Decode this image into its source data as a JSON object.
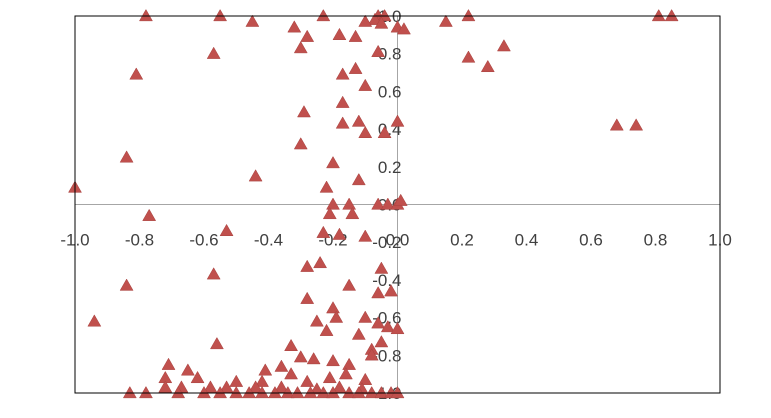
{
  "chart_data": {
    "type": "scatter",
    "title": "",
    "xlabel": "",
    "ylabel": "",
    "xlim": [
      -1.0,
      1.0
    ],
    "ylim": [
      -1.0,
      1.0
    ],
    "x_ticks": [
      "-1.0",
      "-0.8",
      "-0.6",
      "-0.4",
      "-0.2",
      "0.0",
      "0.2",
      "0.4",
      "0.6",
      "0.8",
      "1.0"
    ],
    "y_ticks": [
      "-1.0",
      "-0.8",
      "-0.6",
      "-0.4",
      "-0.2",
      "0.0",
      "0.2",
      "0.4",
      "0.6",
      "0.8",
      "1.0"
    ],
    "x_tick_values": [
      -1.0,
      -0.8,
      -0.6,
      -0.4,
      -0.2,
      0.0,
      0.2,
      0.4,
      0.6,
      0.8,
      1.0
    ],
    "y_tick_values": [
      -1.0,
      -0.8,
      -0.6,
      -0.4,
      -0.2,
      0.0,
      0.2,
      0.4,
      0.6,
      0.8,
      1.0
    ],
    "grid": false,
    "legend": "none",
    "marker": "triangle",
    "marker_color": "#C0504D",
    "axis_color": "#a6a6a6",
    "frame_color": "#000000",
    "series": [
      {
        "points": [
          [
            -0.78,
            1.0
          ],
          [
            -0.55,
            1.0
          ],
          [
            -0.45,
            0.97
          ],
          [
            -0.23,
            1.0
          ],
          [
            -0.06,
            1.0
          ],
          [
            -0.04,
            1.0
          ],
          [
            -0.07,
            0.98
          ],
          [
            -0.1,
            0.97
          ],
          [
            -0.05,
            0.96
          ],
          [
            0.0,
            0.94
          ],
          [
            0.02,
            0.93
          ],
          [
            0.15,
            0.97
          ],
          [
            0.22,
            1.0
          ],
          [
            0.81,
            1.0
          ],
          [
            0.85,
            1.0
          ],
          [
            -0.32,
            0.94
          ],
          [
            -0.28,
            0.89
          ],
          [
            -0.18,
            0.9
          ],
          [
            -0.13,
            0.89
          ],
          [
            -0.3,
            0.83
          ],
          [
            -0.57,
            0.8
          ],
          [
            -0.06,
            0.81
          ],
          [
            0.22,
            0.78
          ],
          [
            0.33,
            0.84
          ],
          [
            0.28,
            0.73
          ],
          [
            -0.81,
            0.69
          ],
          [
            -0.13,
            0.72
          ],
          [
            -0.17,
            0.69
          ],
          [
            -0.1,
            0.63
          ],
          [
            -0.17,
            0.54
          ],
          [
            -0.29,
            0.49
          ],
          [
            -0.17,
            0.43
          ],
          [
            -0.12,
            0.44
          ],
          [
            -0.1,
            0.38
          ],
          [
            -0.04,
            0.38
          ],
          [
            0.0,
            0.44
          ],
          [
            0.68,
            0.42
          ],
          [
            0.74,
            0.42
          ],
          [
            -0.3,
            0.32
          ],
          [
            -0.84,
            0.25
          ],
          [
            -0.2,
            0.22
          ],
          [
            -0.44,
            0.15
          ],
          [
            -0.12,
            0.13
          ],
          [
            -1.0,
            0.09
          ],
          [
            -0.22,
            0.09
          ],
          [
            -0.15,
            0.0
          ],
          [
            -0.2,
            0.0
          ],
          [
            -0.06,
            0.0
          ],
          [
            -0.03,
            0.0
          ],
          [
            0.0,
            0.0
          ],
          [
            0.01,
            0.02
          ],
          [
            -0.21,
            -0.05
          ],
          [
            -0.14,
            -0.05
          ],
          [
            -0.77,
            -0.06
          ],
          [
            -0.53,
            -0.14
          ],
          [
            -0.23,
            -0.15
          ],
          [
            -0.18,
            -0.16
          ],
          [
            -0.1,
            -0.17
          ],
          [
            -0.24,
            -0.31
          ],
          [
            -0.28,
            -0.33
          ],
          [
            -0.05,
            -0.34
          ],
          [
            -0.57,
            -0.37
          ],
          [
            -0.84,
            -0.43
          ],
          [
            -0.15,
            -0.43
          ],
          [
            -0.28,
            -0.5
          ],
          [
            -0.06,
            -0.47
          ],
          [
            -0.02,
            -0.46
          ],
          [
            -0.2,
            -0.55
          ],
          [
            -0.19,
            -0.6
          ],
          [
            -0.25,
            -0.62
          ],
          [
            -0.1,
            -0.6
          ],
          [
            -0.06,
            -0.63
          ],
          [
            -0.03,
            -0.65
          ],
          [
            0.0,
            -0.66
          ],
          [
            -0.94,
            -0.62
          ],
          [
            -0.22,
            -0.67
          ],
          [
            -0.12,
            -0.69
          ],
          [
            -0.05,
            -0.73
          ],
          [
            -0.56,
            -0.74
          ],
          [
            -0.33,
            -0.75
          ],
          [
            -0.08,
            -0.77
          ],
          [
            -0.3,
            -0.81
          ],
          [
            -0.26,
            -0.82
          ],
          [
            -0.2,
            -0.83
          ],
          [
            -0.15,
            -0.85
          ],
          [
            -0.08,
            -0.8
          ],
          [
            -0.71,
            -0.85
          ],
          [
            -0.65,
            -0.88
          ],
          [
            -0.41,
            -0.88
          ],
          [
            -0.36,
            -0.86
          ],
          [
            -0.72,
            -0.92
          ],
          [
            -0.62,
            -0.92
          ],
          [
            -0.5,
            -0.94
          ],
          [
            -0.42,
            -0.94
          ],
          [
            -0.33,
            -0.9
          ],
          [
            -0.28,
            -0.94
          ],
          [
            -0.21,
            -0.92
          ],
          [
            -0.16,
            -0.9
          ],
          [
            -0.1,
            -0.93
          ],
          [
            -0.72,
            -0.97
          ],
          [
            -0.67,
            -0.97
          ],
          [
            -0.58,
            -0.97
          ],
          [
            -0.53,
            -0.97
          ],
          [
            -0.44,
            -0.97
          ],
          [
            -0.36,
            -0.97
          ],
          [
            -0.25,
            -0.98
          ],
          [
            -0.18,
            -0.97
          ],
          [
            -0.11,
            -0.98
          ],
          [
            -0.83,
            -1.0
          ],
          [
            -0.78,
            -1.0
          ],
          [
            -0.68,
            -1.0
          ],
          [
            -0.6,
            -1.0
          ],
          [
            -0.55,
            -1.0
          ],
          [
            -0.5,
            -1.0
          ],
          [
            -0.46,
            -1.0
          ],
          [
            -0.42,
            -1.0
          ],
          [
            -0.38,
            -1.0
          ],
          [
            -0.34,
            -1.0
          ],
          [
            -0.31,
            -1.0
          ],
          [
            -0.27,
            -1.0
          ],
          [
            -0.23,
            -1.0
          ],
          [
            -0.2,
            -1.0
          ],
          [
            -0.15,
            -1.0
          ],
          [
            -0.12,
            -1.0
          ],
          [
            -0.08,
            -1.0
          ],
          [
            -0.05,
            -1.0
          ],
          [
            -0.02,
            -1.0
          ],
          [
            0.0,
            -1.0
          ]
        ]
      }
    ]
  }
}
